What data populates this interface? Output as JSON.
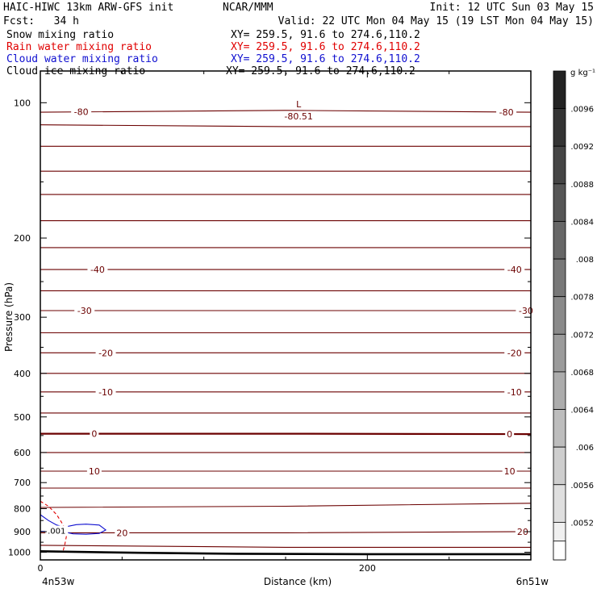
{
  "header": {
    "line1_left": "HAIC-HIWC 13km ARW-GFS init",
    "line1_mid": "NCAR/MMM",
    "line1_right": "Init: 12 UTC Sun 03 May 15",
    "line2_left": "Fcst:   34 h",
    "line2_right": "Valid: 22 UTC Mon 04 May 15 (19 LST Mon 04 May 15)"
  },
  "fields": [
    {
      "name": "Snow mixing ratio",
      "xy": "XY= 259.5, 91.6 to 274.6,110.2",
      "color": "#000000"
    },
    {
      "name": "Rain water mixing ratio",
      "xy": "XY= 259.5, 91.6 to 274.6,110.2",
      "color": "#e00000"
    },
    {
      "name": "Cloud water mixing ratio",
      "xy": "XY= 259.5, 91.6 to 274.6,110.2",
      "color": "#1010d0"
    },
    {
      "name": "Cloud ice mixing ratio",
      "xy": "XY= 259.5, 91.6 to 274.6,110.2",
      "color": "#000000"
    }
  ],
  "chart_data": {
    "type": "line",
    "xlabel": "Distance (km)",
    "ylabel": "Pressure (hPa)",
    "xlim": [
      0,
      300
    ],
    "x_ticks": [
      0,
      200
    ],
    "y_scale": "log",
    "ylim": [
      1040,
      85
    ],
    "y_ticks": [
      100,
      200,
      300,
      400,
      500,
      600,
      700,
      800,
      900,
      1000
    ],
    "x_endpoint_labels": [
      "4n53w",
      "6n51w"
    ],
    "colorbar": {
      "unit": "g kg⁻¹",
      "labels": [
        ".0096",
        ".0092",
        ".0088",
        ".0084",
        ".008",
        ".0078",
        ".0072",
        ".0068",
        ".0064",
        ".006",
        ".0056",
        ".0052"
      ]
    },
    "temperature_contours": {
      "color": "#6b0000",
      "levels": [
        {
          "p": [
            105,
            104,
            105
          ],
          "label": "-80",
          "labels_at": [
            25,
            285
          ]
        },
        {
          "p": [
            112,
            113,
            113
          ],
          "label": ""
        },
        {
          "p": [
            125,
            125,
            125
          ],
          "label": ""
        },
        {
          "p": [
            142,
            142,
            142
          ],
          "label": ""
        },
        {
          "p": [
            160,
            160,
            160
          ],
          "label": ""
        },
        {
          "p": [
            183,
            183,
            183
          ],
          "label": ""
        },
        {
          "p": [
            210,
            210,
            210
          ],
          "label": ""
        },
        {
          "p": [
            235,
            235,
            235
          ],
          "label": "-40",
          "labels_at": [
            35,
            290
          ]
        },
        {
          "p": [
            262,
            262,
            262
          ],
          "label": ""
        },
        {
          "p": [
            290,
            290,
            290
          ],
          "label": "-30",
          "labels_at": [
            27,
            297
          ]
        },
        {
          "p": [
            325,
            325,
            325
          ],
          "label": ""
        },
        {
          "p": [
            360,
            360,
            360
          ],
          "label": "-20",
          "labels_at": [
            40,
            290
          ]
        },
        {
          "p": [
            400,
            400,
            400
          ],
          "label": ""
        },
        {
          "p": [
            440,
            440,
            440
          ],
          "label": "-10",
          "labels_at": [
            40,
            290
          ]
        },
        {
          "p": [
            490,
            490,
            490
          ],
          "label": ""
        },
        {
          "p": [
            545,
            545,
            546
          ],
          "label": "0",
          "labels_at": [
            33,
            287
          ],
          "bold": true
        },
        {
          "p": [
            600,
            600,
            600
          ],
          "label": ""
        },
        {
          "p": [
            660,
            660,
            660
          ],
          "label": "10",
          "labels_at": [
            33,
            287
          ]
        },
        {
          "p": [
            720,
            720,
            720
          ],
          "label": ""
        },
        {
          "p": [
            795,
            790,
            778
          ],
          "label": ""
        },
        {
          "p": [
            905,
            905,
            900
          ],
          "label": "20",
          "labels_at": [
            50,
            295
          ]
        },
        {
          "p": [
            965,
            975,
            975
          ],
          "label": ""
        }
      ]
    },
    "min_marker": {
      "label": "L",
      "value": "-80.51",
      "x": 155,
      "p": 104
    },
    "ground": {
      "x": [
        0,
        15,
        60,
        120,
        200,
        300
      ],
      "p": [
        995,
        997,
        1003,
        1008,
        1010,
        1010
      ]
    },
    "rain_water": {
      "x": [
        0,
        5,
        10,
        14,
        16,
        15,
        14
      ],
      "p": [
        770,
        790,
        825,
        870,
        920,
        960,
        990
      ],
      "label": ""
    },
    "cloud_water": {
      "contour_label": ".001",
      "outer": {
        "x": [
          0,
          5,
          10,
          15,
          16,
          16,
          8,
          0
        ],
        "p": [
          825,
          850,
          870,
          880,
          890,
          905,
          900,
          898
        ]
      },
      "inner": {
        "x": [
          14,
          22,
          28,
          36,
          40,
          36,
          28,
          20,
          14
        ],
        "p": [
          880,
          868,
          866,
          870,
          892,
          908,
          912,
          910,
          900
        ]
      }
    }
  }
}
